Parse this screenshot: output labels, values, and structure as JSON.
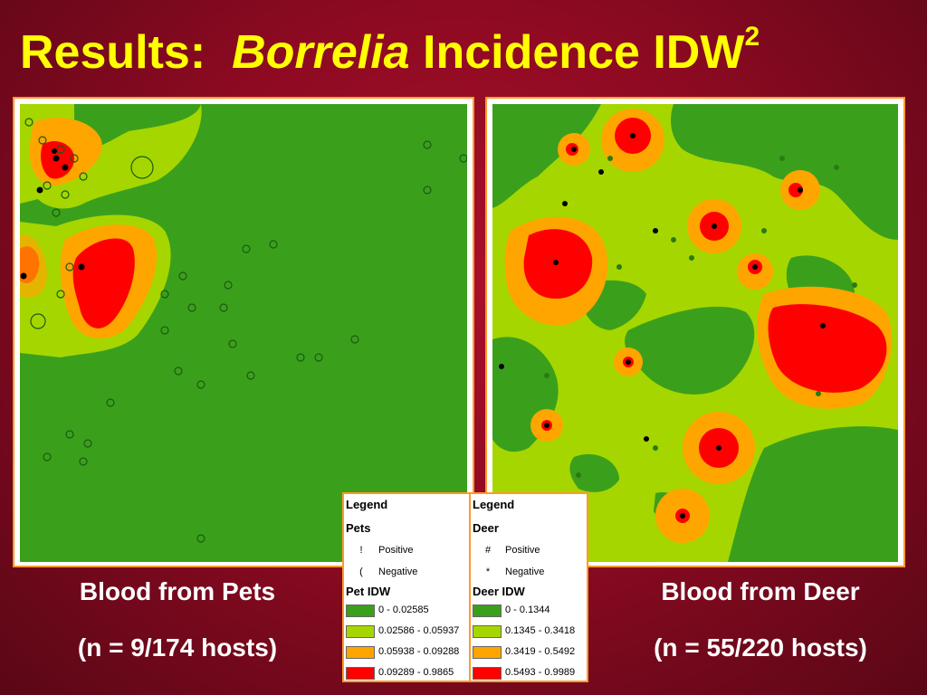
{
  "title": {
    "prefix": "Results:",
    "italic": "Borrelia",
    "suffix": "Incidence IDW",
    "superscript": "2"
  },
  "pets": {
    "caption_line1": "Blood from Pets",
    "caption_line2": "(n = 9/174 hosts)"
  },
  "deer": {
    "caption_line1": "Blood from Deer",
    "caption_line2": "(n = 55/220 hosts)"
  },
  "legend_pets": {
    "heading": "Legend",
    "group": "Pets",
    "positive_symbol": "!",
    "positive_label": "Positive",
    "negative_symbol": "(",
    "negative_label": "Negative",
    "idw_heading": "Pet IDW",
    "ranges": [
      "0 - 0.02585",
      "0.02586 - 0.05937",
      "0.05938 - 0.09288",
      "0.09289 - 0.9865"
    ]
  },
  "legend_deer": {
    "heading": "Legend",
    "group": "Deer",
    "positive_symbol": "#",
    "positive_label": "Positive",
    "negative_symbol": "*",
    "negative_label": "Negative",
    "idw_heading": "Deer IDW",
    "ranges": [
      "0 - 0.1344",
      "0.1345 - 0.3418",
      "0.3419 - 0.5492",
      "0.5493 - 0.9989"
    ]
  },
  "colors": {
    "title": "#ffff00",
    "idw_class_1": "#3aa01c",
    "idw_class_2": "#a6d600",
    "idw_class_3": "#ffa500",
    "idw_class_4": "#ff0000",
    "border": "#ff9a2a"
  }
}
